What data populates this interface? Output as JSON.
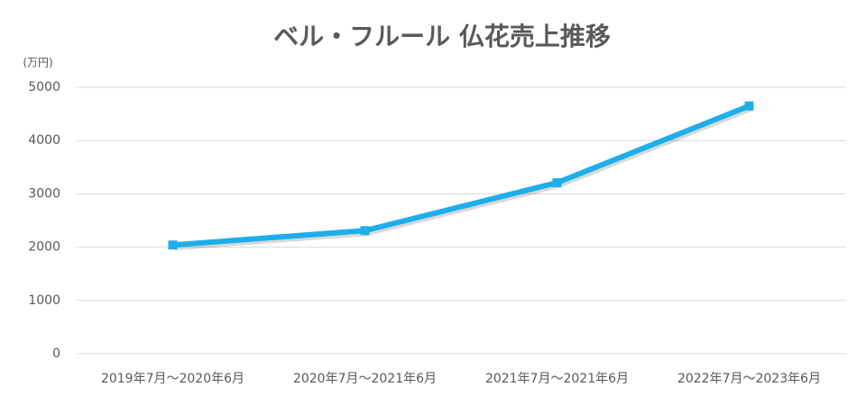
{
  "chart_data": {
    "type": "line",
    "title": "ベル・フルール 仏花売上推移",
    "y_unit_label": "(万円)",
    "categories": [
      "2019年7月～2020年6月",
      "2020年7月～2021年6月",
      "2021年7月～2021年6月",
      "2022年7月～2023年6月"
    ],
    "series": [
      {
        "name": "売上",
        "color": "#1eaeea",
        "values": [
          2040,
          2310,
          3210,
          4650
        ]
      }
    ],
    "ylim": [
      0,
      5000
    ],
    "yticks": [
      0,
      1000,
      2000,
      3000,
      4000,
      5000
    ],
    "grid": true,
    "legend": false
  }
}
